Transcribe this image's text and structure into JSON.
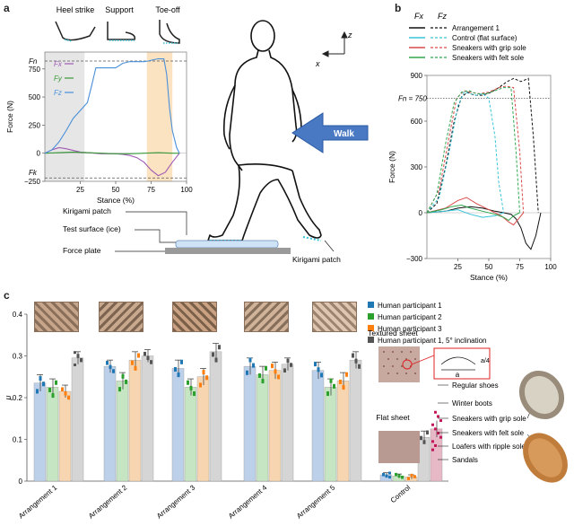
{
  "panels": {
    "a": {
      "letter": "a",
      "phases": [
        "Heel strike",
        "Support",
        "Toe-off"
      ],
      "chart_data": {
        "type": "line",
        "xlabel": "Stance (%)",
        "ylabel": "Force (N)",
        "xlim": [
          0,
          100
        ],
        "ylim": [
          -250,
          900
        ],
        "x_ticks": [
          25,
          50,
          75,
          100
        ],
        "y_ticks": [
          -250,
          0,
          250,
          500,
          750
        ],
        "y_tick_labels": [
          "−250",
          "0",
          "250",
          "500",
          "750"
        ],
        "ref_labels": {
          "fn": "Fn",
          "fk": "Fk"
        },
        "ref_lines": {
          "fn": 820,
          "fk": -220
        },
        "legend": [
          "Fx",
          "Fy",
          "Fz"
        ],
        "series": [
          {
            "name": "Fx",
            "color": "#a05ab4",
            "x": [
              0,
              5,
              10,
              15,
              20,
              25,
              30,
              35,
              40,
              45,
              50,
              55,
              60,
              65,
              70,
              75,
              80,
              85,
              90,
              95
            ],
            "y": [
              0,
              30,
              50,
              40,
              25,
              10,
              5,
              0,
              -5,
              -5,
              -5,
              -10,
              -20,
              -40,
              -80,
              -150,
              -200,
              -170,
              -80,
              0
            ]
          },
          {
            "name": "Fy",
            "color": "#3a9a3a",
            "x": [
              0,
              10,
              20,
              30,
              40,
              50,
              60,
              70,
              80,
              90,
              95
            ],
            "y": [
              0,
              5,
              10,
              5,
              0,
              -5,
              -5,
              0,
              5,
              0,
              0
            ]
          },
          {
            "name": "Fz",
            "color": "#4a90d9",
            "x": [
              0,
              5,
              10,
              15,
              20,
              25,
              30,
              33,
              36,
              40,
              45,
              50,
              55,
              60,
              65,
              70,
              73,
              76,
              80,
              84,
              86,
              88,
              90,
              93,
              95
            ],
            "y": [
              0,
              30,
              100,
              200,
              310,
              380,
              450,
              600,
              760,
              760,
              760,
              760,
              800,
              815,
              815,
              815,
              820,
              830,
              840,
              840,
              700,
              400,
              200,
              50,
              0
            ]
          }
        ]
      },
      "walk_label": "Walk",
      "axis_z": "z",
      "axis_x": "x",
      "labels": {
        "kirigami_patch": "Kirigami patch",
        "test_surface": "Test surface (ice)",
        "force_plate": "Force plate",
        "kirigami_patch_2": "Kirigami patch"
      }
    },
    "b": {
      "letter": "b",
      "fn_label": "Fn = 750",
      "col_fx": "Fx",
      "col_fz": "Fz",
      "legend": [
        "Arrangement 1",
        "Control (flat surface)",
        "Sneakers with grip sole",
        "Sneakers with felt sole"
      ],
      "chart_data": {
        "type": "line",
        "xlabel": "Stance (%)",
        "ylabel": "Force (N)",
        "xlim": [
          0,
          100
        ],
        "ylim": [
          -300,
          900
        ],
        "x_ticks": [
          25,
          50,
          75,
          100
        ],
        "y_ticks": [
          -300,
          0,
          300,
          600,
          900
        ],
        "y_tick_labels": [
          "−300",
          "0",
          "300",
          "600",
          "900"
        ],
        "ref_line": 750,
        "series": [
          {
            "name": "Arrangement 1",
            "color": "#111111",
            "kind": "Fz",
            "x": [
              0,
              8,
              15,
              22,
              28,
              33,
              38,
              45,
              52,
              58,
              65,
              70,
              76,
              82,
              86,
              90
            ],
            "y": [
              0,
              60,
              300,
              600,
              760,
              790,
              770,
              770,
              790,
              820,
              860,
              880,
              860,
              880,
              500,
              0
            ]
          },
          {
            "name": "Arrangement 1",
            "color": "#111111",
            "kind": "Fx",
            "x": [
              0,
              15,
              25,
              35,
              45,
              55,
              62,
              68,
              72,
              76,
              80,
              84,
              88,
              92
            ],
            "y": [
              0,
              10,
              30,
              40,
              30,
              10,
              0,
              -10,
              -40,
              -100,
              -200,
              -240,
              -150,
              0
            ]
          },
          {
            "name": "Control (flat surface)",
            "color": "#38c4d8",
            "kind": "Fz",
            "x": [
              0,
              10,
              18,
              25,
              30,
              35,
              40,
              45,
              50,
              55,
              58,
              62
            ],
            "y": [
              0,
              100,
              400,
              700,
              790,
              780,
              770,
              780,
              750,
              500,
              200,
              0
            ]
          },
          {
            "name": "Control (flat surface)",
            "color": "#38c4d8",
            "kind": "Fx",
            "x": [
              0,
              15,
              25,
              35,
              45,
              55,
              62
            ],
            "y": [
              0,
              10,
              20,
              -10,
              -30,
              -20,
              0
            ]
          },
          {
            "name": "Sneakers with grip sole",
            "color": "#d94a4a",
            "kind": "Fz",
            "x": [
              0,
              10,
              18,
              24,
              30,
              35,
              42,
              50,
              58,
              64,
              70,
              75,
              78
            ],
            "y": [
              0,
              150,
              500,
              750,
              800,
              790,
              780,
              790,
              820,
              830,
              820,
              400,
              0
            ]
          },
          {
            "name": "Sneakers with grip sole",
            "color": "#d94a4a",
            "kind": "Fx",
            "x": [
              0,
              15,
              25,
              32,
              40,
              50,
              60,
              66,
              70,
              74,
              78
            ],
            "y": [
              0,
              30,
              80,
              100,
              60,
              20,
              -20,
              -60,
              -80,
              -40,
              0
            ]
          },
          {
            "name": "Sneakers with felt sole",
            "color": "#2fa84f",
            "kind": "Fz",
            "x": [
              0,
              8,
              15,
              22,
              28,
              34,
              40,
              48,
              55,
              62,
              68,
              72,
              75
            ],
            "y": [
              0,
              120,
              450,
              720,
              790,
              800,
              780,
              780,
              800,
              820,
              820,
              400,
              0
            ]
          },
          {
            "name": "Sneakers with felt sole",
            "color": "#2fa84f",
            "kind": "Fx",
            "x": [
              0,
              12,
              20,
              28,
              35,
              45,
              55,
              62,
              66,
              70,
              75
            ],
            "y": [
              0,
              20,
              40,
              50,
              30,
              10,
              -10,
              -30,
              -50,
              -20,
              0
            ]
          }
        ]
      }
    },
    "c": {
      "letter": "c",
      "legend": [
        "Human participant 1",
        "Human participant 2",
        "Human participant 3",
        "Human participant 1, 5° inclination"
      ],
      "legend_colors": [
        "#1f77b4",
        "#2ca02c",
        "#ff7f0e",
        "#555555"
      ],
      "bar_colors": [
        "#bcd0ea",
        "#c6e6c3",
        "#f7d5b0",
        "#d5d5d5"
      ],
      "chart_data": {
        "type": "bar",
        "ylabel": "μ",
        "ylim": [
          0,
          0.4
        ],
        "y_ticks": [
          0,
          0.1,
          0.2,
          0.3,
          0.4
        ],
        "y_tick_labels": [
          "0",
          "0.1",
          "0.2",
          "0.3",
          "0.4"
        ],
        "categories": [
          "Arrangement 1",
          "Arrangement 2",
          "Arrangement 3",
          "Arrangement 4",
          "Arrangement 5",
          "Control"
        ],
        "series": [
          {
            "name": "Human participant 1",
            "values": [
              0.235,
              0.275,
              0.27,
              0.275,
              0.265,
              0.015
            ],
            "err": [
              0.02,
              0.015,
              0.02,
              0.02,
              0.02,
              0.005
            ]
          },
          {
            "name": "Human participant 2",
            "values": [
              0.225,
              0.24,
              0.225,
              0.255,
              0.225,
              0.012
            ],
            "err": [
              0.02,
              0.02,
              0.02,
              0.02,
              0.02,
              0.005
            ]
          },
          {
            "name": "Human participant 3",
            "values": [
              0.215,
              0.29,
              0.25,
              0.265,
              0.24,
              0.01
            ],
            "err": [
              0.015,
              0.02,
              0.02,
              0.02,
              0.02,
              0.005
            ]
          },
          {
            "name": "Human participant 1, 5° inclination",
            "values": [
              0.295,
              0.3,
              0.31,
              0.28,
              0.29,
              0.105
            ],
            "err": [
              0.015,
              0.015,
              0.02,
              0.015,
              0.02,
              0.015
            ]
          }
        ],
        "control_extra": {
          "value": 0.125,
          "err": 0.02,
          "color": "#e7b8c5"
        }
      },
      "textured_sheet": "Textured sheet",
      "flat_sheet": "Flat sheet",
      "dim_a": "a",
      "dim_a4": "a/4",
      "shoe_labels": [
        "Regular shoes",
        "Winter boots",
        "Sneakers with grip sole",
        "Sneakers with felt sole",
        "Loafers with ripple sole",
        "Sandals"
      ]
    }
  }
}
